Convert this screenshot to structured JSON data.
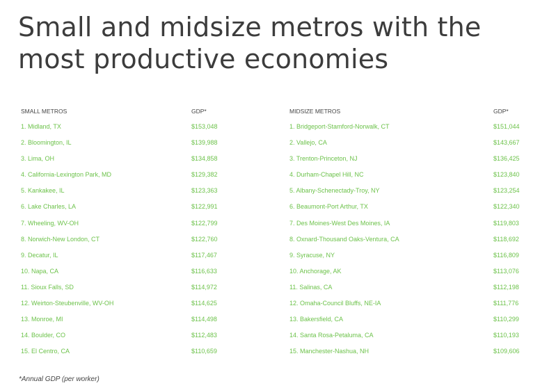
{
  "title": "Small and midsize metros with the most productive economies",
  "small": {
    "header_name": "SMALL METROS",
    "header_gdp": "GDP*",
    "rows": [
      {
        "name": "1. Midland, TX",
        "gdp": "$153,048"
      },
      {
        "name": "2. Bloomington, IL",
        "gdp": "$139,988"
      },
      {
        "name": "3. Lima, OH",
        "gdp": "$134,858"
      },
      {
        "name": "4. California-Lexington Park, MD",
        "gdp": "$129,382"
      },
      {
        "name": "5. Kankakee, IL",
        "gdp": "$123,363"
      },
      {
        "name": "6. Lake Charles, LA",
        "gdp": "$122,991"
      },
      {
        "name": "7. Wheeling, WV-OH",
        "gdp": "$122,799"
      },
      {
        "name": "8. Norwich-New London, CT",
        "gdp": "$122,760"
      },
      {
        "name": "9. Decatur, IL",
        "gdp": "$117,467"
      },
      {
        "name": "10. Napa, CA",
        "gdp": "$116,633"
      },
      {
        "name": "11. Sioux Falls, SD",
        "gdp": "$114,972"
      },
      {
        "name": "12. Weirton-Steubenville, WV-OH",
        "gdp": "$114,625"
      },
      {
        "name": "13. Monroe, MI",
        "gdp": "$114,498"
      },
      {
        "name": "14. Boulder, CO",
        "gdp": "$112,483"
      },
      {
        "name": "15. El Centro, CA",
        "gdp": "$110,659"
      }
    ]
  },
  "midsize": {
    "header_name": "MIDSIZE METROS",
    "header_gdp": "GDP*",
    "rows": [
      {
        "name": "1. Bridgeport-Stamford-Norwalk, CT",
        "gdp": "$151,044"
      },
      {
        "name": "2. Vallejo, CA",
        "gdp": "$143,667"
      },
      {
        "name": "3. Trenton-Princeton, NJ",
        "gdp": "$136,425"
      },
      {
        "name": "4. Durham-Chapel Hill, NC",
        "gdp": "$123,840"
      },
      {
        "name": "5. Albany-Schenectady-Troy, NY",
        "gdp": "$123,254"
      },
      {
        "name": "6. Beaumont-Port Arthur, TX",
        "gdp": "$122,340"
      },
      {
        "name": "7. Des Moines-West Des Moines, IA",
        "gdp": "$119,803"
      },
      {
        "name": "8. Oxnard-Thousand Oaks-Ventura, CA",
        "gdp": "$118,692"
      },
      {
        "name": "9. Syracuse, NY",
        "gdp": "$116,809"
      },
      {
        "name": "10. Anchorage, AK",
        "gdp": "$113,076"
      },
      {
        "name": "11. Salinas, CA",
        "gdp": "$112,198"
      },
      {
        "name": "12. Omaha-Council Bluffs, NE-IA",
        "gdp": "$111,776"
      },
      {
        "name": "13. Bakersfield, CA",
        "gdp": "$110,299"
      },
      {
        "name": "14. Santa Rosa-Petaluma, CA",
        "gdp": "$110,193"
      },
      {
        "name": "15. Manchester-Nashua, NH",
        "gdp": "$109,606"
      }
    ]
  },
  "footnote": "*Annual GDP (per worker)",
  "colors": {
    "accent": "#6cc24a",
    "title": "#3c3c3c",
    "text": "#444444"
  }
}
